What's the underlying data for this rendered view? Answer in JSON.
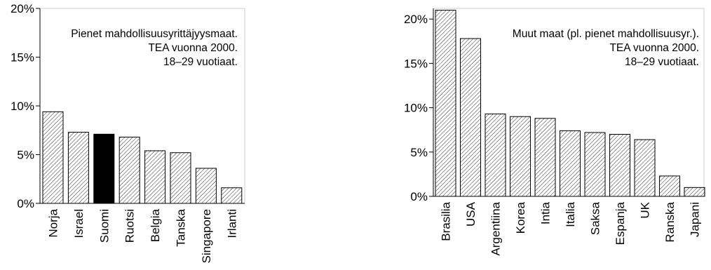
{
  "chart_data": [
    {
      "type": "bar",
      "annotation": [
        "Pienet mahdollisuusyrittäjyysmaat.",
        "TEA vuonna 2000.",
        "18–29 vuotiaat."
      ],
      "categories": [
        "Norja",
        "Israel",
        "Suomi",
        "Ruotsi",
        "Belgia",
        "Tanska",
        "Singapore",
        "Irlanti"
      ],
      "values": [
        9.4,
        7.3,
        7.1,
        6.8,
        5.4,
        5.2,
        3.6,
        1.6
      ],
      "highlight": "Suomi",
      "ylim": [
        0,
        20
      ],
      "yticks": [
        0,
        5,
        10,
        15,
        20
      ],
      "ytick_labels": [
        "0%",
        "5%",
        "10%",
        "15%",
        "20%"
      ],
      "bar_fill": "hatched",
      "highlight_color": "#000000",
      "grid": false
    },
    {
      "type": "bar",
      "annotation": [
        "Muut maat (pl. pienet mahdollisuusyr.).",
        "TEA vuonna 2000.",
        "18–29 vuotiaat."
      ],
      "categories": [
        "Brasilia",
        "USA",
        "Argentiina",
        "Korea",
        "Intia",
        "Italia",
        "Saksa",
        "Espanja",
        "UK",
        "Ranska",
        "Japani"
      ],
      "values": [
        21.0,
        17.8,
        9.3,
        9.0,
        8.8,
        7.4,
        7.2,
        7.0,
        6.4,
        2.3,
        1.0
      ],
      "ylim": [
        0,
        21.2
      ],
      "yticks": [
        0,
        5,
        10,
        15,
        20
      ],
      "ytick_labels": [
        "0%",
        "5%",
        "10%",
        "15%",
        "20%"
      ],
      "bar_fill": "hatched",
      "grid": false
    }
  ]
}
